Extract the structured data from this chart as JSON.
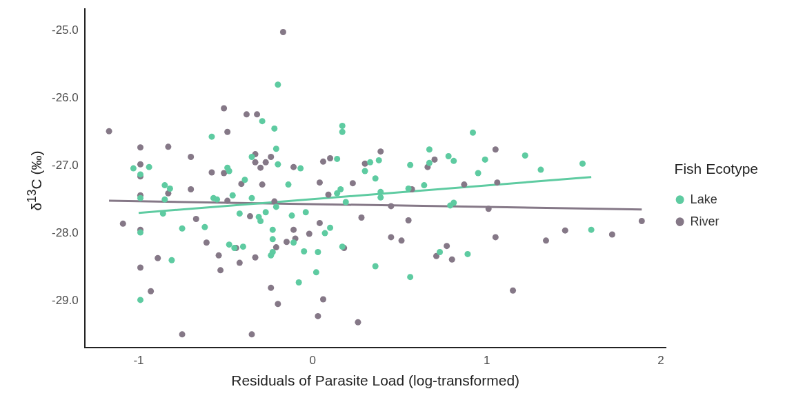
{
  "chart_data": {
    "type": "scatter",
    "xlabel": "Residuals of Parasite Load (log-transformed)",
    "ylabel": "δ$^{13}$C (‰)",
    "legend_title": "Fish Ecotype",
    "legend": "right",
    "grid": false,
    "marker": "circle",
    "xlim": [
      -1.31,
      2.03
    ],
    "xticks": [
      -1,
      0,
      1,
      2
    ],
    "ylim": [
      -29.7,
      -24.68
    ],
    "yticks": [
      {
        "value": -29,
        "label": "-29.0"
      },
      {
        "value": -28,
        "label": "-28.0"
      },
      {
        "value": -27,
        "label": "-27.0"
      },
      {
        "value": -26,
        "label": "-26.0"
      },
      {
        "value": -25,
        "label": "-25.0"
      }
    ],
    "series": [
      {
        "name": "Lake",
        "color": "#5ecba1",
        "x": [
          -1.03,
          -0.99,
          -0.99,
          -0.99,
          -0.99,
          -0.94,
          -0.85,
          -0.82,
          -0.85,
          -0.81,
          -0.86,
          -0.75,
          -0.62,
          -0.58,
          -0.57,
          -0.55,
          -0.49,
          -0.48,
          -0.48,
          -0.46,
          -0.39,
          -0.45,
          -0.4,
          -0.42,
          -0.35,
          -0.35,
          -0.31,
          -0.3,
          -0.29,
          -0.27,
          -0.22,
          -0.21,
          -0.2,
          -0.2,
          -0.23,
          -0.23,
          -0.23,
          -0.24,
          -0.21,
          -0.14,
          -0.12,
          -0.11,
          -0.07,
          -0.05,
          -0.08,
          -0.04,
          0.03,
          0.02,
          0.07,
          0.1,
          0.14,
          0.14,
          0.17,
          0.17,
          0.16,
          0.19,
          0.17,
          0.3,
          0.33,
          0.36,
          0.38,
          0.39,
          0.39,
          0.36,
          0.55,
          0.56,
          0.56,
          0.64,
          0.67,
          0.67,
          0.73,
          0.78,
          0.79,
          0.81,
          0.81,
          0.89,
          0.92,
          0.95,
          0.99,
          1.22,
          1.31,
          1.55,
          1.6
        ],
        "values": [
          -27.04,
          -27.13,
          -27.48,
          -27.99,
          -28.99,
          -27.02,
          -27.29,
          -27.34,
          -27.5,
          -28.4,
          -27.71,
          -27.93,
          -27.91,
          -26.57,
          -27.48,
          -27.5,
          -27.03,
          -27.08,
          -28.17,
          -27.44,
          -27.21,
          -28.22,
          -28.2,
          -27.71,
          -26.87,
          -27.48,
          -27.76,
          -27.82,
          -26.34,
          -27.69,
          -26.45,
          -26.75,
          -25.8,
          -26.98,
          -27.95,
          -28.09,
          -28.28,
          -28.33,
          -27.61,
          -27.28,
          -27.74,
          -28.14,
          -27.04,
          -28.27,
          -28.73,
          -27.69,
          -28.28,
          -28.58,
          -28.0,
          -27.92,
          -27.41,
          -26.9,
          -26.41,
          -26.5,
          -27.35,
          -27.54,
          -28.2,
          -27.08,
          -26.95,
          -27.19,
          -26.92,
          -27.39,
          -27.47,
          -28.49,
          -27.34,
          -26.99,
          -28.65,
          -27.29,
          -26.76,
          -26.96,
          -28.28,
          -26.86,
          -27.59,
          -27.55,
          -26.93,
          -28.31,
          -26.51,
          -27.11,
          -26.91,
          -26.85,
          -27.06,
          -26.97,
          -27.95
        ]
      },
      {
        "name": "River",
        "color": "#857887",
        "x": [
          -1.17,
          -0.99,
          -0.99,
          -0.99,
          -0.99,
          -0.99,
          -0.99,
          -1.09,
          -0.83,
          -0.83,
          -0.89,
          -0.93,
          -0.7,
          -0.7,
          -0.67,
          -0.58,
          -0.61,
          -0.54,
          -0.53,
          -0.75,
          -0.51,
          -0.49,
          -0.51,
          -0.49,
          -0.41,
          -0.33,
          -0.35,
          -0.38,
          -0.32,
          -0.33,
          -0.33,
          -0.36,
          -0.3,
          -0.44,
          -0.42,
          -0.17,
          -0.24,
          -0.27,
          -0.29,
          -0.22,
          -0.21,
          -0.24,
          -0.2,
          -0.15,
          -0.11,
          -0.11,
          -0.1,
          -0.02,
          0.04,
          0.03,
          0.04,
          0.06,
          0.1,
          0.09,
          0.06,
          0.18,
          0.23,
          0.26,
          0.28,
          0.3,
          0.39,
          0.45,
          0.45,
          0.51,
          0.55,
          0.57,
          0.66,
          0.7,
          0.71,
          0.77,
          0.8,
          0.87,
          1.01,
          1.05,
          1.06,
          1.05,
          1.15,
          1.34,
          1.45,
          1.72,
          1.89
        ],
        "values": [
          -26.49,
          -26.73,
          -26.98,
          -27.16,
          -27.44,
          -27.95,
          -28.51,
          -27.86,
          -26.72,
          -27.41,
          -28.37,
          -28.86,
          -26.87,
          -27.35,
          -27.79,
          -27.1,
          -28.14,
          -28.33,
          -28.55,
          -29.5,
          -26.15,
          -26.5,
          -27.11,
          -27.52,
          -27.27,
          -28.36,
          -29.5,
          -26.24,
          -26.24,
          -26.83,
          -26.95,
          -27.75,
          -27.03,
          -28.22,
          -28.44,
          -25.02,
          -26.87,
          -26.95,
          -27.28,
          -27.53,
          -28.21,
          -28.81,
          -29.05,
          -28.13,
          -27.02,
          -27.95,
          -28.08,
          -28.01,
          -27.85,
          -29.23,
          -27.25,
          -26.94,
          -26.89,
          -27.43,
          -28.98,
          -28.22,
          -27.26,
          -29.32,
          -27.77,
          -26.97,
          -26.79,
          -27.6,
          -28.06,
          -28.11,
          -27.81,
          -27.35,
          -27.02,
          -26.91,
          -28.34,
          -28.19,
          -28.39,
          -27.28,
          -27.64,
          -26.76,
          -27.25,
          -28.06,
          -28.85,
          -28.11,
          -27.96,
          -28.02,
          -27.82
        ]
      },
      {
        "type": "line",
        "color": "#5ecba1",
        "marker": "none",
        "x": [
          -1.0,
          1.6
        ],
        "values": [
          -27.7,
          -27.17
        ]
      },
      {
        "type": "line",
        "color": "#857887",
        "marker": "none",
        "x": [
          -1.17,
          1.89
        ],
        "values": [
          -27.52,
          -27.65
        ]
      }
    ]
  }
}
